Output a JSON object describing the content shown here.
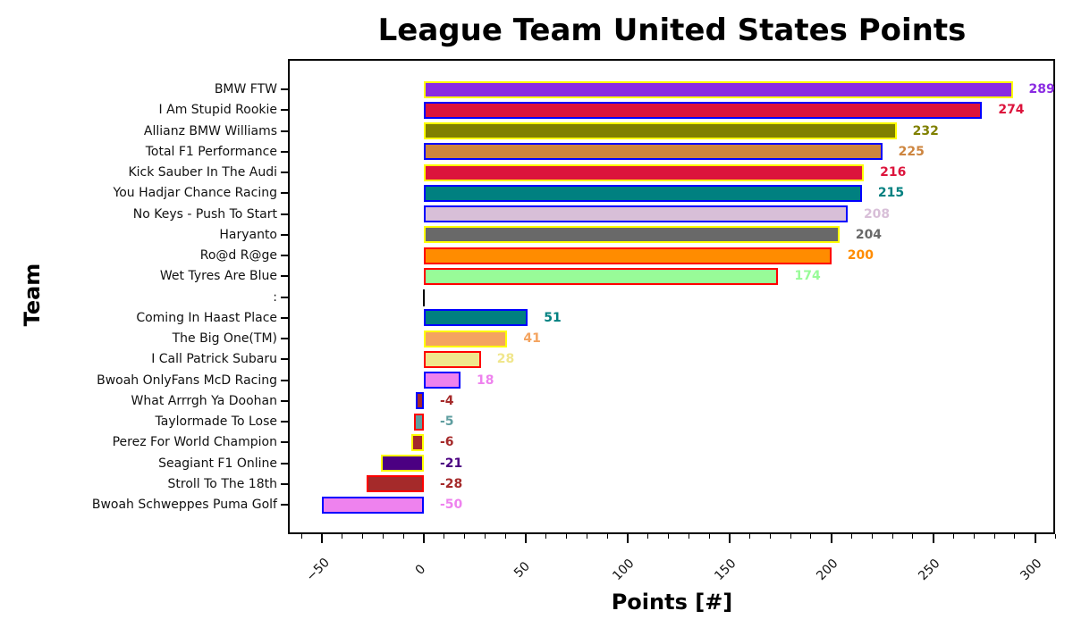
{
  "chart_data": {
    "type": "bar",
    "orientation": "horizontal",
    "title": "League Team United States Points",
    "xlabel": "Points [#]",
    "ylabel": "Team",
    "xlim": [
      -60,
      310
    ],
    "xticks": [
      -50,
      0,
      50,
      100,
      150,
      200,
      250,
      300
    ],
    "xtick_labels": [
      "−50",
      "0",
      "50",
      "100",
      "150",
      "200",
      "250",
      "300"
    ],
    "grid": false,
    "categories": [
      "BMW FTW",
      "I Am Stupid Rookie",
      "Allianz BMW Williams",
      "Total F1 Performance",
      "Kick Sauber In The Audi",
      "You Hadjar Chance Racing",
      "No Keys - Push To Start",
      "Haryanto",
      "Ro@d R@ge",
      "Wet Tyres Are Blue",
      ":",
      "Coming In Haast Place",
      "The Big One(TM)",
      "I Call Patrick Subaru",
      "Bwoah OnlyFans McD Racing",
      "What Arrrgh Ya Doohan",
      "Taylormade To Lose",
      "Perez For World Champion",
      "Seagiant F1 Online",
      "Stroll To The 18th",
      "Bwoah Schweppes Puma Golf"
    ],
    "values": [
      289,
      274,
      232,
      225,
      216,
      215,
      208,
      204,
      200,
      174,
      null,
      51,
      41,
      28,
      18,
      -4,
      -5,
      -6,
      -21,
      -28,
      -50
    ],
    "value_labels": [
      "289",
      "274",
      "232",
      "225",
      "216",
      "215",
      "208",
      "204",
      "200",
      "174",
      "",
      "51",
      "41",
      "28",
      "18",
      "-4",
      "-5",
      "-6",
      "-21",
      "-28",
      "-50"
    ],
    "fill_colors": [
      "#8a2be2",
      "#dc143c",
      "#808000",
      "#cd853f",
      "#dc143c",
      "#008080",
      "#d8bfd8",
      "#696969",
      "#ff8c00",
      "#98fb98",
      "#000000",
      "#008080",
      "#f4a460",
      "#f0e68c",
      "#ee82ee",
      "#a52a2a",
      "#5f9ea0",
      "#a52a2a",
      "#4b0082",
      "#a52a2a",
      "#ee82ee"
    ],
    "edge_colors": [
      "#ffff00",
      "#0000ff",
      "#ffff00",
      "#0000ff",
      "#ffff00",
      "#0000ff",
      "#0000ff",
      "#ffff00",
      "#ff0000",
      "#ff0000",
      "#000000",
      "#0000ff",
      "#ffff00",
      "#ff0000",
      "#0000ff",
      "#0000ff",
      "#ff0000",
      "#ffff00",
      "#ffff00",
      "#ff0000",
      "#0000ff"
    ]
  }
}
